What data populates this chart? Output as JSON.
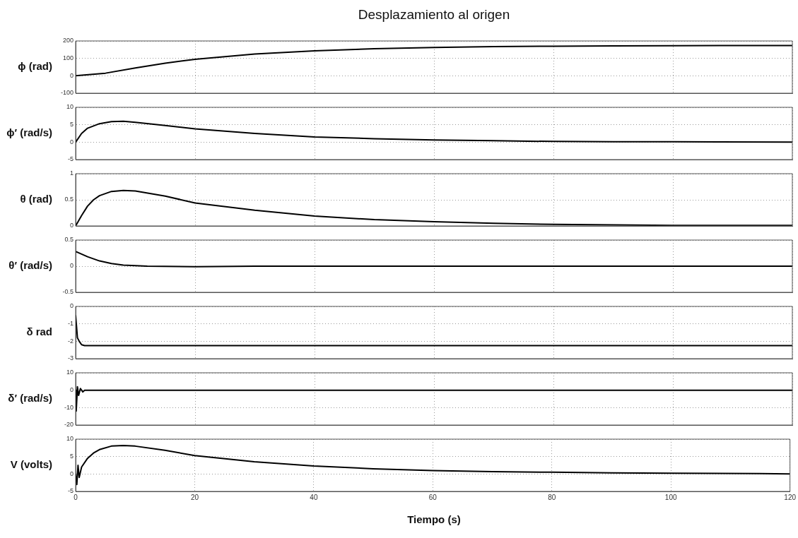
{
  "chart_data": [
    {
      "type": "line",
      "title": "Desplazamiento al origen",
      "ylabel": "ϕ (rad)",
      "x": [
        0,
        5,
        10,
        15,
        20,
        30,
        40,
        50,
        60,
        70,
        80,
        90,
        100,
        110,
        120
      ],
      "series": [
        {
          "color": "#000000",
          "values": [
            0,
            15,
            45,
            72,
            95,
            125,
            143,
            155,
            163,
            168,
            170,
            172,
            173,
            174,
            174
          ]
        }
      ],
      "xlim": [
        0,
        120
      ],
      "xticks": [
        0,
        20,
        40,
        60,
        80,
        100,
        120
      ],
      "ylim": [
        -100,
        200
      ],
      "yticks": [
        -100,
        0,
        100,
        200
      ],
      "grid": true,
      "tick_labels": "y",
      "marker": "none",
      "line_style": "solid"
    },
    {
      "type": "line",
      "ylabel": "ϕ′ (rad/s)",
      "x": [
        0,
        1,
        2,
        4,
        6,
        8,
        10,
        15,
        20,
        30,
        40,
        50,
        60,
        70,
        80,
        90,
        100,
        120
      ],
      "series": [
        {
          "color": "#000000",
          "values": [
            0,
            2.5,
            4,
            5.3,
            5.9,
            6,
            5.7,
            4.8,
            3.8,
            2.5,
            1.5,
            1,
            0.6,
            0.4,
            0.2,
            0.1,
            0.1,
            0
          ]
        }
      ],
      "xlim": [
        0,
        120
      ],
      "xticks": [
        0,
        20,
        40,
        60,
        80,
        100,
        120
      ],
      "ylim": [
        -5,
        10
      ],
      "yticks": [
        -5,
        0,
        5,
        10
      ],
      "grid": true,
      "tick_labels": "y",
      "marker": "none",
      "line_style": "solid"
    },
    {
      "type": "line",
      "ylabel": "θ (rad)",
      "x": [
        0,
        1,
        2,
        3,
        4,
        6,
        8,
        10,
        15,
        20,
        30,
        40,
        50,
        60,
        70,
        80,
        90,
        100,
        120
      ],
      "series": [
        {
          "color": "#000000",
          "values": [
            0,
            0.2,
            0.38,
            0.5,
            0.58,
            0.66,
            0.68,
            0.67,
            0.57,
            0.44,
            0.3,
            0.19,
            0.12,
            0.08,
            0.05,
            0.03,
            0.02,
            0.01,
            0.01
          ]
        }
      ],
      "xlim": [
        0,
        120
      ],
      "xticks": [
        0,
        20,
        40,
        60,
        80,
        100,
        120
      ],
      "ylim": [
        0,
        1
      ],
      "yticks": [
        0,
        0.5,
        1
      ],
      "grid": true,
      "tick_labels": "y",
      "marker": "none",
      "line_style": "solid"
    },
    {
      "type": "line",
      "ylabel": "θ′ (rad/s)",
      "x": [
        0,
        2,
        4,
        6,
        8,
        10,
        12,
        20,
        30,
        60,
        90,
        120
      ],
      "series": [
        {
          "color": "#000000",
          "values": [
            0.28,
            0.18,
            0.1,
            0.05,
            0.02,
            0.01,
            0,
            -0.01,
            0,
            0,
            0,
            0
          ]
        }
      ],
      "xlim": [
        0,
        120
      ],
      "xticks": [
        0,
        20,
        40,
        60,
        80,
        100,
        120
      ],
      "ylim": [
        -0.5,
        0.5
      ],
      "yticks": [
        -0.5,
        0,
        0.5
      ],
      "grid": true,
      "tick_labels": "y",
      "marker": "none",
      "line_style": "solid"
    },
    {
      "type": "line",
      "ylabel": "δ rad",
      "x": [
        0,
        0.3,
        0.6,
        1,
        1.5,
        30,
        60,
        90,
        120
      ],
      "series": [
        {
          "color": "#000000",
          "values": [
            -0.5,
            -1.8,
            -2,
            -2.2,
            -2.25,
            -2.25,
            -2.25,
            -2.25,
            -2.25
          ]
        }
      ],
      "xlim": [
        0,
        120
      ],
      "xticks": [
        0,
        20,
        40,
        60,
        80,
        100,
        120
      ],
      "ylim": [
        -3,
        0
      ],
      "yticks": [
        -3,
        -2,
        -1,
        0
      ],
      "grid": true,
      "tick_labels": "y",
      "marker": "none",
      "line_style": "solid"
    },
    {
      "type": "line",
      "ylabel": "δ′ (rad/s)",
      "x": [
        0,
        0.1,
        0.3,
        0.5,
        0.8,
        1.2,
        1.5,
        30,
        60,
        90,
        120
      ],
      "series": [
        {
          "color": "#000000",
          "values": [
            0,
            -12,
            2,
            -3,
            1,
            -1,
            0,
            0,
            0,
            0,
            0
          ]
        }
      ],
      "xlim": [
        0,
        120
      ],
      "xticks": [
        0,
        20,
        40,
        60,
        80,
        100,
        120
      ],
      "ylim": [
        -20,
        10
      ],
      "yticks": [
        -20,
        -10,
        0,
        10
      ],
      "grid": true,
      "tick_labels": "y",
      "marker": "none",
      "line_style": "solid"
    },
    {
      "type": "line",
      "ylabel": "V (volts)",
      "xlabel": "Tiempo (s)",
      "x": [
        0,
        0.2,
        0.4,
        0.6,
        1,
        2,
        3,
        4,
        6,
        8,
        10,
        15,
        20,
        30,
        40,
        50,
        60,
        70,
        80,
        90,
        100,
        115,
        120
      ],
      "series": [
        {
          "color": "#000000",
          "values": [
            0,
            -3,
            2.5,
            -1,
            2,
            4.5,
            6,
            7,
            8,
            8.2,
            8,
            6.8,
            5.3,
            3.5,
            2.3,
            1.5,
            1,
            0.7,
            0.5,
            0.3,
            0.2,
            0.1,
            0
          ]
        }
      ],
      "xlim": [
        0,
        120
      ],
      "xticks": [
        0,
        20,
        40,
        60,
        80,
        100,
        120
      ],
      "ylim": [
        -5,
        10
      ],
      "yticks": [
        -5,
        0,
        5,
        10
      ],
      "grid": true,
      "marker": "none",
      "line_style": "solid"
    }
  ]
}
